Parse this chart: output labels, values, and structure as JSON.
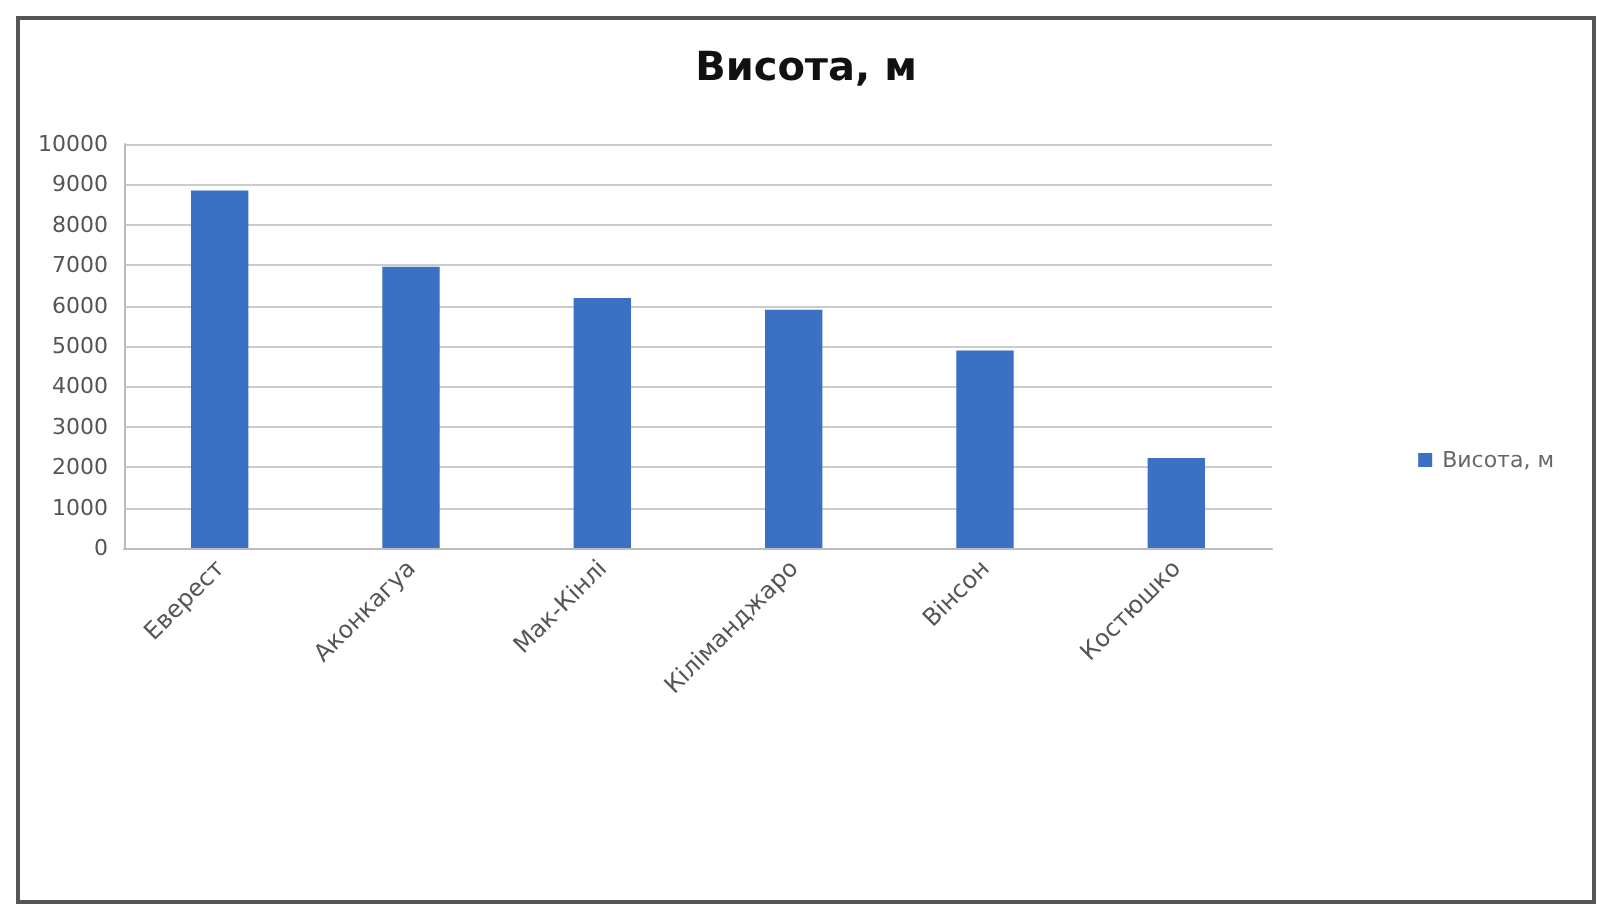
{
  "chart_data": {
    "type": "bar",
    "title": "Висота, м",
    "categories": [
      "Еверест",
      "Аконкагуа",
      "Мак-Кінлі",
      "Кіліманджаро",
      "Вінсон",
      "Костюшко"
    ],
    "series": [
      {
        "name": "Висота, м",
        "color": "#3b70c4",
        "values": [
          8850,
          6960,
          6190,
          5900,
          4890,
          2230
        ]
      }
    ],
    "ylim": [
      0,
      10000
    ],
    "yticks": [
      0,
      1000,
      2000,
      3000,
      4000,
      5000,
      6000,
      7000,
      8000,
      9000,
      10000
    ],
    "grid": "y",
    "legend": "right"
  }
}
